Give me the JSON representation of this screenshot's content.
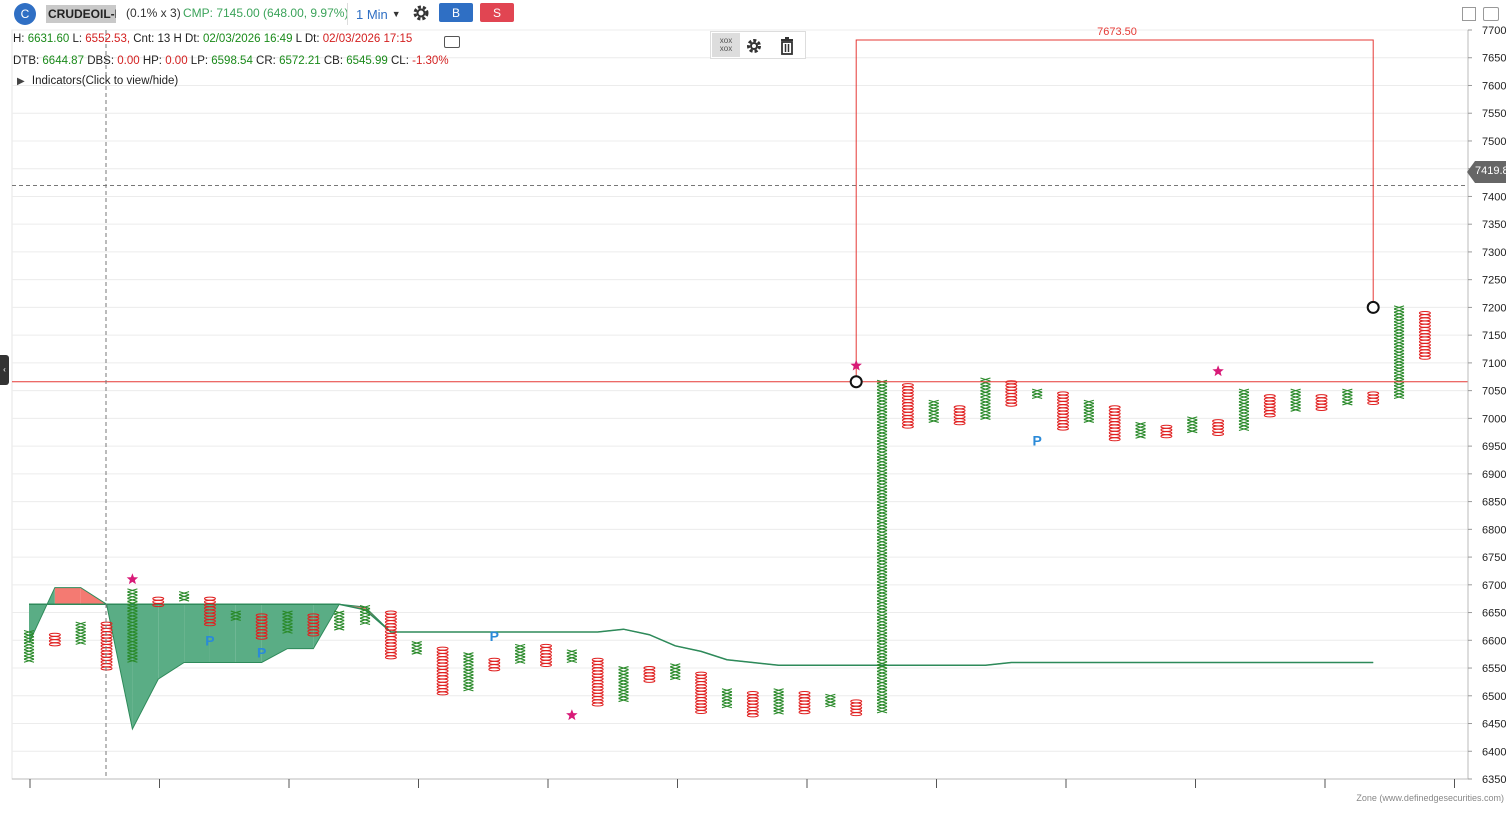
{
  "header": {
    "logo_letter": "C",
    "symbol": "CRUDEOIL-I",
    "box_size": "(0.1% x 3)",
    "cmp": "CMP: 7145.00 (648.00, 9.97%)",
    "timeframe": "1 Min",
    "buy_label": "B",
    "sell_label": "S"
  },
  "info": {
    "h_label": "H:",
    "h_val": "6631.60",
    "l_label": "L:",
    "l_val": "6552.53,",
    "cnt": "Cnt: 13 H",
    "dt_label": "Dt:",
    "dt_val": "02/03/2026 16:49",
    "ldt_label": "L Dt:",
    "ldt_val": "02/03/2026 17:15",
    "dtb_label": "DTB:",
    "dtb_val": "6644.87",
    "dbs_label": "DBS:",
    "dbs_val": "0.00",
    "hp_label": "HP:",
    "hp_val": "0.00",
    "lp_label": "LP:",
    "lp_val": "6598.54",
    "cr_label": "CR:",
    "cr_val": "6572.21",
    "cb_label": "CB:",
    "cb_val": "6545.99",
    "cl_label": "CL:",
    "cl_val": "-1.30%",
    "indicators": "Indicators(Click to view/hide)"
  },
  "annotations": {
    "measure_label": "7673.50",
    "crosshair_price": "7419.8",
    "zone_text": "Zone (www.definedgesecurities.com)"
  },
  "colors": {
    "x_col": "#2a8a2a",
    "o_col": "#e02020",
    "cloud_green": "#5aad85",
    "cloud_red": "#f47a72",
    "star": "#d81b78",
    "p_mark": "#2a8ad8",
    "measure": "#e53935"
  },
  "chart_data": {
    "type": "point-and-figure",
    "ylim": [
      6350,
      7700
    ],
    "yticks": [
      6350,
      6400,
      6450,
      6500,
      6550,
      6600,
      6650,
      6700,
      6750,
      6800,
      6850,
      6900,
      6950,
      7000,
      7050,
      7100,
      7150,
      7200,
      7250,
      7300,
      7350,
      7400,
      7450,
      7500,
      7550,
      7600,
      7650,
      7700
    ],
    "horizontal_line": 7066,
    "crosshair_y": 7419.8,
    "measure": {
      "from_col": 32,
      "to_col": 52,
      "low": 7066,
      "high": 7673.5,
      "label": "7673.50"
    },
    "columns": [
      {
        "t": "X",
        "lo": 6560,
        "hi": 6615
      },
      {
        "t": "O",
        "lo": 6590,
        "hi": 6610
      },
      {
        "t": "X",
        "lo": 6590,
        "hi": 6630
      },
      {
        "t": "O",
        "lo": 6545,
        "hi": 6630
      },
      {
        "t": "X",
        "lo": 6560,
        "hi": 6690
      },
      {
        "t": "O",
        "lo": 6660,
        "hi": 6675
      },
      {
        "t": "X",
        "lo": 6670,
        "hi": 6685
      },
      {
        "t": "O",
        "lo": 6625,
        "hi": 6675
      },
      {
        "t": "X",
        "lo": 6635,
        "hi": 6650
      },
      {
        "t": "O",
        "lo": 6600,
        "hi": 6645
      },
      {
        "t": "X",
        "lo": 6610,
        "hi": 6650
      },
      {
        "t": "O",
        "lo": 6610,
        "hi": 6645
      },
      {
        "t": "X",
        "lo": 6620,
        "hi": 6650
      },
      {
        "t": "X",
        "lo": 6630,
        "hi": 6660
      },
      {
        "t": "O",
        "lo": 6565,
        "hi": 6650
      },
      {
        "t": "X",
        "lo": 6575,
        "hi": 6595
      },
      {
        "t": "O",
        "lo": 6500,
        "hi": 6585
      },
      {
        "t": "X",
        "lo": 6510,
        "hi": 6575
      },
      {
        "t": "O",
        "lo": 6545,
        "hi": 6565
      },
      {
        "t": "X",
        "lo": 6560,
        "hi": 6590
      },
      {
        "t": "O",
        "lo": 6555,
        "hi": 6590
      },
      {
        "t": "X",
        "lo": 6560,
        "hi": 6580
      },
      {
        "t": "O",
        "lo": 6480,
        "hi": 6565
      },
      {
        "t": "X",
        "lo": 6490,
        "hi": 6550
      },
      {
        "t": "O",
        "lo": 6525,
        "hi": 6550
      },
      {
        "t": "X",
        "lo": 6530,
        "hi": 6555
      },
      {
        "t": "O",
        "lo": 6470,
        "hi": 6540
      },
      {
        "t": "X",
        "lo": 6480,
        "hi": 6510
      },
      {
        "t": "O",
        "lo": 6460,
        "hi": 6505
      },
      {
        "t": "X",
        "lo": 6465,
        "hi": 6510
      },
      {
        "t": "O",
        "lo": 6470,
        "hi": 6505
      },
      {
        "t": "X",
        "lo": 6480,
        "hi": 6500
      },
      {
        "t": "O",
        "lo": 6465,
        "hi": 6490
      },
      {
        "t": "X",
        "lo": 6470,
        "hi": 7066
      },
      {
        "t": "O",
        "lo": 6980,
        "hi": 7060
      },
      {
        "t": "X",
        "lo": 6990,
        "hi": 7030
      },
      {
        "t": "O",
        "lo": 6990,
        "hi": 7020
      },
      {
        "t": "X",
        "lo": 7000,
        "hi": 7070
      },
      {
        "t": "O",
        "lo": 7020,
        "hi": 7065
      },
      {
        "t": "X",
        "lo": 7035,
        "hi": 7050
      },
      {
        "t": "O",
        "lo": 6980,
        "hi": 7045
      },
      {
        "t": "X",
        "lo": 6990,
        "hi": 7030
      },
      {
        "t": "O",
        "lo": 6960,
        "hi": 7020
      },
      {
        "t": "X",
        "lo": 6965,
        "hi": 6990
      },
      {
        "t": "O",
        "lo": 6965,
        "hi": 6985
      },
      {
        "t": "X",
        "lo": 6975,
        "hi": 7000
      },
      {
        "t": "O",
        "lo": 6970,
        "hi": 6995
      },
      {
        "t": "X",
        "lo": 6980,
        "hi": 7050
      },
      {
        "t": "O",
        "lo": 7005,
        "hi": 7040
      },
      {
        "t": "X",
        "lo": 7010,
        "hi": 7050
      },
      {
        "t": "O",
        "lo": 7015,
        "hi": 7040
      },
      {
        "t": "X",
        "lo": 7025,
        "hi": 7050
      },
      {
        "t": "O",
        "lo": 7025,
        "hi": 7045
      },
      {
        "t": "X",
        "lo": 7035,
        "hi": 7200
      },
      {
        "t": "O",
        "lo": 7105,
        "hi": 7190
      }
    ],
    "stars": [
      {
        "col": 4,
        "price": 6710
      },
      {
        "col": 21,
        "price": 6465
      },
      {
        "col": 32,
        "price": 7095
      },
      {
        "col": 46,
        "price": 7085
      }
    ],
    "p_marks": [
      {
        "col": 7,
        "price": 6600
      },
      {
        "col": 9,
        "price": 6578
      },
      {
        "col": 18,
        "price": 6608
      },
      {
        "col": 39,
        "price": 6960
      }
    ],
    "circles": [
      {
        "col": 32,
        "price": 7066
      },
      {
        "col": 52,
        "price": 7200
      }
    ],
    "cloud_upper": [
      6665,
      6665,
      6665,
      6665,
      6665,
      6665,
      6665,
      6665,
      6665,
      6665,
      6665,
      6665,
      6665,
      6655,
      6615,
      6615,
      6615,
      6615,
      6615,
      6615,
      6615,
      6615,
      6615,
      6620,
      6610,
      6590,
      6580,
      6565,
      6560,
      6555,
      6555,
      6555,
      6555,
      6555,
      6555,
      6555,
      6555,
      6555,
      6560,
      6560,
      6560,
      6560,
      6560,
      6560,
      6560,
      6560,
      6560,
      6560,
      6560,
      6560,
      6560,
      6560,
      6560
    ],
    "cloud_lower": [
      6595,
      6695,
      6695,
      6665,
      6440,
      6530,
      6560,
      6560,
      6560,
      6560,
      6585,
      6585,
      6665,
      6660,
      6615,
      6615,
      6615,
      6615,
      6615,
      6615,
      6615,
      6615,
      6615,
      6620,
      6610,
      6590,
      6580,
      6565,
      6560,
      6555,
      6555,
      6555,
      6555,
      6555,
      6555,
      6555,
      6555,
      6555,
      6560,
      6560,
      6560,
      6560,
      6560,
      6560,
      6560,
      6560,
      6560,
      6560,
      6560,
      6560,
      6560,
      6560,
      6560
    ]
  }
}
